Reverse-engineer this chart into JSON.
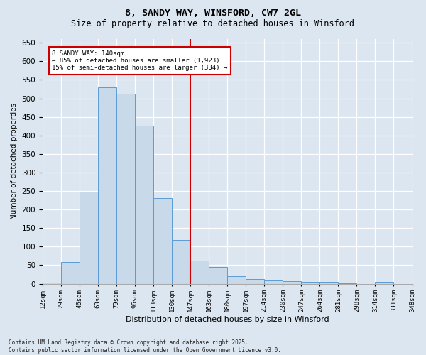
{
  "title": "8, SANDY WAY, WINSFORD, CW7 2GL",
  "subtitle": "Size of property relative to detached houses in Winsford",
  "xlabel": "Distribution of detached houses by size in Winsford",
  "ylabel": "Number of detached properties",
  "bar_labels": [
    "12sqm",
    "29sqm",
    "46sqm",
    "63sqm",
    "79sqm",
    "96sqm",
    "113sqm",
    "130sqm",
    "147sqm",
    "163sqm",
    "180sqm",
    "197sqm",
    "214sqm",
    "230sqm",
    "247sqm",
    "264sqm",
    "281sqm",
    "298sqm",
    "314sqm",
    "331sqm",
    "348sqm"
  ],
  "bar_values": [
    3,
    58,
    248,
    530,
    512,
    427,
    231,
    118,
    62,
    46,
    20,
    12,
    8,
    7,
    5,
    4,
    1,
    0,
    5,
    0
  ],
  "bar_color": "#c8d9ea",
  "bar_edge_color": "#5b9bd5",
  "reference_line_x": 8,
  "reference_line_color": "#cc0000",
  "annotation_title": "8 SANDY WAY: 140sqm",
  "annotation_line1": "← 85% of detached houses are smaller (1,923)",
  "annotation_line2": "15% of semi-detached houses are larger (334) →",
  "annotation_box_color": "#cc0000",
  "ylim": [
    0,
    660
  ],
  "yticks": [
    0,
    50,
    100,
    150,
    200,
    250,
    300,
    350,
    400,
    450,
    500,
    550,
    600,
    650
  ],
  "bg_color": "#dce6f0",
  "plot_bg_color": "#dce6f0",
  "footnote1": "Contains HM Land Registry data © Crown copyright and database right 2025.",
  "footnote2": "Contains public sector information licensed under the Open Government Licence v3.0."
}
